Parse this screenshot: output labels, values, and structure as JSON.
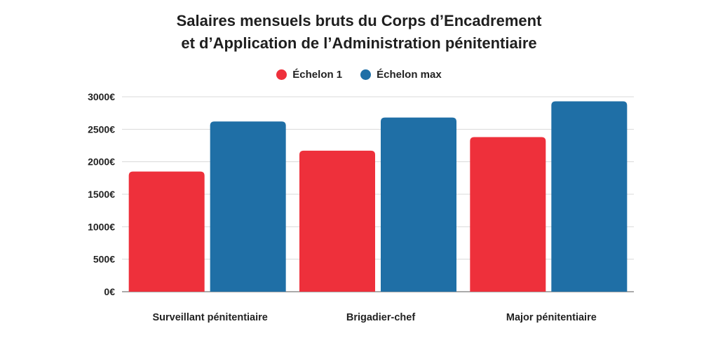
{
  "chart_data": {
    "type": "bar",
    "title": "Salaires mensuels bruts du Corps d’Encadrement et d’Application de l’Administration pénitentiaire",
    "title_lines": [
      "Salaires mensuels bruts du Corps d’Encadrement",
      "et d’Application de l’Administration pénitentiaire"
    ],
    "categories": [
      "Surveillant pénitentiaire",
      "Brigadier-chef",
      "Major pénitentiaire"
    ],
    "series": [
      {
        "name": "Échelon 1",
        "color": "#ee303b",
        "values": [
          1850,
          2170,
          2380
        ]
      },
      {
        "name": "Échelon max",
        "color": "#1f6fa6",
        "values": [
          2620,
          2680,
          2930
        ]
      }
    ],
    "yticks": [
      0,
      500,
      1000,
      1500,
      2000,
      2500,
      3000
    ],
    "ytick_labels": [
      "0€",
      "500€",
      "1000€",
      "1500€",
      "2000€",
      "2500€",
      "3000€"
    ],
    "ylim": [
      0,
      3000
    ],
    "xlabel": "",
    "ylabel": "",
    "grid": true,
    "legend_position": "top-center"
  }
}
